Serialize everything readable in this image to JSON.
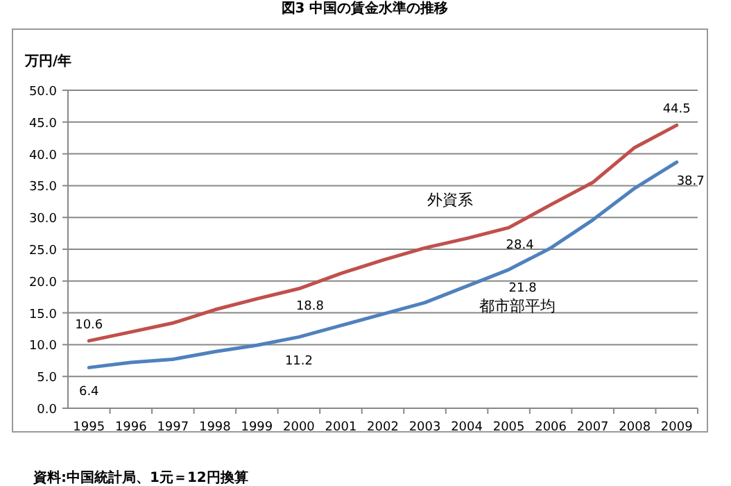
{
  "chart_data": {
    "type": "line",
    "title": "図3 中国の賃金水準の推移",
    "ylabel": "万円/年",
    "categories": [
      "1995",
      "1996",
      "1997",
      "1998",
      "1999",
      "2000",
      "2001",
      "2002",
      "2003",
      "2004",
      "2005",
      "2006",
      "2007",
      "2008",
      "2009"
    ],
    "series": [
      {
        "name": "外資系",
        "color": "#c0504d",
        "values": [
          10.6,
          12.0,
          13.4,
          15.5,
          17.2,
          18.8,
          21.2,
          23.3,
          25.2,
          26.7,
          28.4,
          32.0,
          35.5,
          41.0,
          44.5
        ],
        "value_labels": [
          "10.6",
          null,
          null,
          null,
          null,
          "18.8",
          null,
          null,
          null,
          null,
          "28.4",
          null,
          null,
          null,
          "44.5"
        ]
      },
      {
        "name": "都市部平均",
        "color": "#4f81bd",
        "values": [
          6.4,
          7.2,
          7.7,
          8.9,
          9.9,
          11.2,
          13.0,
          14.8,
          16.6,
          19.2,
          21.8,
          25.2,
          29.6,
          34.6,
          38.7
        ],
        "value_labels": [
          "6.4",
          null,
          null,
          null,
          null,
          "11.2",
          null,
          null,
          null,
          null,
          "21.8",
          null,
          null,
          null,
          "38.7"
        ]
      }
    ],
    "ylim": [
      0,
      50
    ],
    "yticks": [
      {
        "value": 0,
        "label": "0.0"
      },
      {
        "value": 5,
        "label": "5.0"
      },
      {
        "value": 10,
        "label": "10.0"
      },
      {
        "value": 15,
        "label": "15.0"
      },
      {
        "value": 20,
        "label": "20.0"
      },
      {
        "value": 25,
        "label": "25.0"
      },
      {
        "value": 30,
        "label": "30.0"
      },
      {
        "value": 35,
        "label": "35.0"
      },
      {
        "value": 40,
        "label": "40.0"
      },
      {
        "value": 45,
        "label": "45.0"
      },
      {
        "value": 50,
        "label": "50.0"
      }
    ],
    "grid": "y",
    "marker": "none",
    "line_style": "solid",
    "annotations": [
      "資料:中国統計局、1元＝12円換算"
    ]
  }
}
